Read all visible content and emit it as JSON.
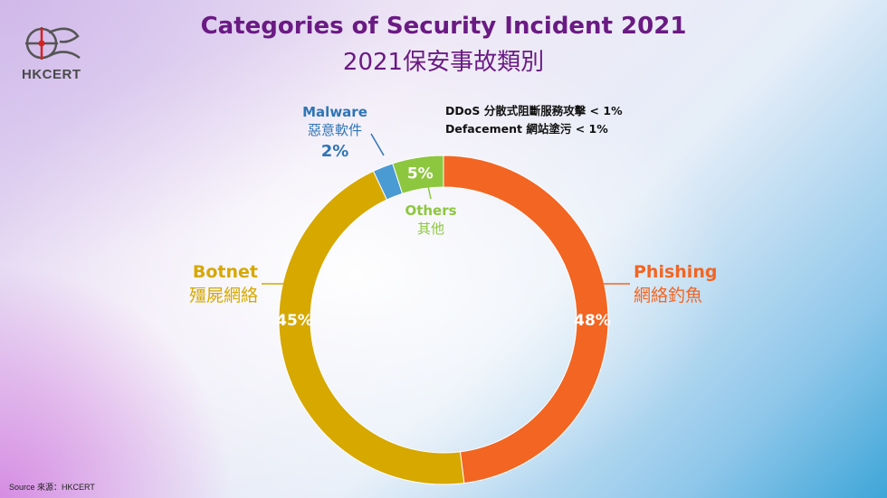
{
  "logo": {
    "text": "HKCERT",
    "icon": "hkcert-logo-icon"
  },
  "source_note": "Source 來源：HKCERT",
  "colors": {
    "title": "#6a1a83",
    "phishing": "#f26522",
    "botnet": "#d6a800",
    "malware": "#4a9ad4",
    "others": "#8dc63f",
    "malware_text": "#2e75b6"
  },
  "chart_data": {
    "type": "pie",
    "style": "donut",
    "title": "Categories of Security Incident 2021",
    "subtitle": "2021保安事故類別",
    "start_angle_deg": 0,
    "direction": "clockwise",
    "slices": [
      {
        "key": "phishing",
        "name": "Phishing",
        "name_zh": "網絡釣魚",
        "value": 48,
        "label": "48%"
      },
      {
        "key": "botnet",
        "name": "Botnet",
        "name_zh": "殭屍網絡",
        "value": 45,
        "label": "45%"
      },
      {
        "key": "malware",
        "name": "Malware",
        "name_zh": "惡意軟件",
        "value": 2,
        "label": "2%"
      },
      {
        "key": "others",
        "name": "Others",
        "name_zh": "其他",
        "value": 5,
        "label": "5%"
      }
    ],
    "annotations": [
      "DDoS 分散式阻斷服務攻擊  < 1%",
      "Defacement 網站塗污 < 1%"
    ]
  }
}
